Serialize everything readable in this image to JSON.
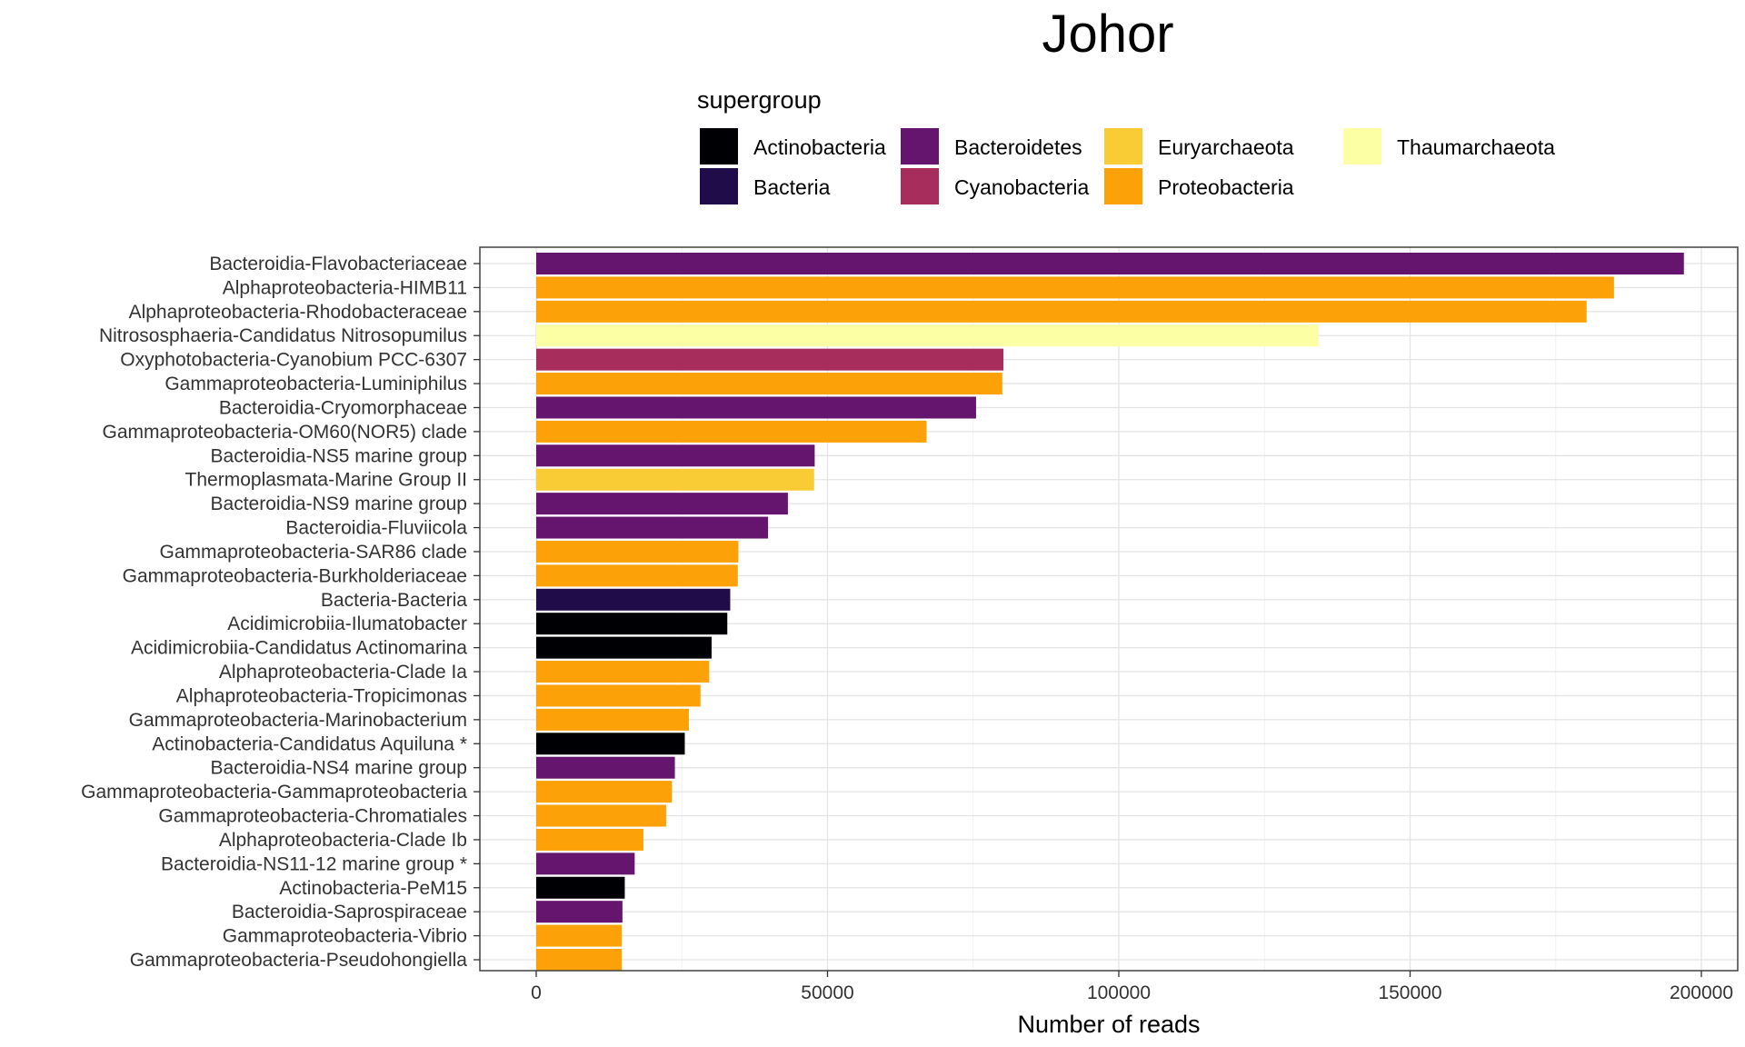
{
  "chart_data": {
    "type": "bar",
    "orientation": "horizontal",
    "title": "Johor",
    "xlabel": "Number of reads",
    "ylabel": "",
    "xlim": [
      -10000,
      207000
    ],
    "xticks": [
      0,
      50000,
      100000,
      150000,
      200000
    ],
    "grid": true,
    "legend": {
      "title": "supergroup",
      "placement": "top",
      "entries": [
        {
          "name": "Actinobacteria",
          "color": "#000004"
        },
        {
          "name": "Bacteria",
          "color": "#1f0c48"
        },
        {
          "name": "Bacteroidetes",
          "color": "#65156e"
        },
        {
          "name": "Cyanobacteria",
          "color": "#a72d5c"
        },
        {
          "name": "Euryarchaeota",
          "color": "#f9cb35"
        },
        {
          "name": "Proteobacteria",
          "color": "#fca108"
        },
        {
          "name": "Thaumarchaeota",
          "color": "#fcffa4"
        }
      ]
    },
    "bars": [
      {
        "label": "Bacteroidia-Flavobacteriaceae",
        "value": 197000,
        "group": "Bacteroidetes"
      },
      {
        "label": "Alphaproteobacteria-HIMB11",
        "value": 185000,
        "group": "Proteobacteria"
      },
      {
        "label": "Alphaproteobacteria-Rhodobacteraceae",
        "value": 180300,
        "group": "Proteobacteria"
      },
      {
        "label": "Nitrososphaeria-Candidatus Nitrosopumilus",
        "value": 134300,
        "group": "Thaumarchaeota"
      },
      {
        "label": "Oxyphotobacteria-Cyanobium PCC-6307",
        "value": 80200,
        "group": "Cyanobacteria"
      },
      {
        "label": "Gammaproteobacteria-Luminiphilus",
        "value": 80000,
        "group": "Proteobacteria"
      },
      {
        "label": "Bacteroidia-Cryomorphaceae",
        "value": 75500,
        "group": "Bacteroidetes"
      },
      {
        "label": "Gammaproteobacteria-OM60(NOR5) clade",
        "value": 67000,
        "group": "Proteobacteria"
      },
      {
        "label": "Bacteroidia-NS5 marine group",
        "value": 47800,
        "group": "Bacteroidetes"
      },
      {
        "label": "Thermoplasmata-Marine Group II",
        "value": 47700,
        "group": "Euryarchaeota"
      },
      {
        "label": "Bacteroidia-NS9 marine group",
        "value": 43200,
        "group": "Bacteroidetes"
      },
      {
        "label": "Bacteroidia-Fluviicola",
        "value": 39800,
        "group": "Bacteroidetes"
      },
      {
        "label": "Gammaproteobacteria-SAR86 clade",
        "value": 34700,
        "group": "Proteobacteria"
      },
      {
        "label": "Gammaproteobacteria-Burkholderiaceae",
        "value": 34600,
        "group": "Proteobacteria"
      },
      {
        "label": "Bacteria-Bacteria",
        "value": 33300,
        "group": "Bacteria"
      },
      {
        "label": "Acidimicrobiia-Ilumatobacter",
        "value": 32800,
        "group": "Actinobacteria"
      },
      {
        "label": "Acidimicrobiia-Candidatus Actinomarina",
        "value": 30100,
        "group": "Actinobacteria"
      },
      {
        "label": "Alphaproteobacteria-Clade Ia",
        "value": 29700,
        "group": "Proteobacteria"
      },
      {
        "label": "Alphaproteobacteria-Tropicimonas",
        "value": 28200,
        "group": "Proteobacteria"
      },
      {
        "label": "Gammaproteobacteria-Marinobacterium",
        "value": 26200,
        "group": "Proteobacteria"
      },
      {
        "label": "Actinobacteria-Candidatus Aquiluna *",
        "value": 25500,
        "group": "Actinobacteria"
      },
      {
        "label": "Bacteroidia-NS4 marine group",
        "value": 23800,
        "group": "Bacteroidetes"
      },
      {
        "label": "Gammaproteobacteria-Gammaproteobacteria",
        "value": 23300,
        "group": "Proteobacteria"
      },
      {
        "label": "Gammaproteobacteria-Chromatiales",
        "value": 22300,
        "group": "Proteobacteria"
      },
      {
        "label": "Alphaproteobacteria-Clade Ib",
        "value": 18400,
        "group": "Proteobacteria"
      },
      {
        "label": "Bacteroidia-NS11-12 marine group *",
        "value": 16900,
        "group": "Bacteroidetes"
      },
      {
        "label": "Actinobacteria-PeM15",
        "value": 15200,
        "group": "Actinobacteria"
      },
      {
        "label": "Bacteroidia-Saprospiraceae",
        "value": 14800,
        "group": "Bacteroidetes"
      },
      {
        "label": "Gammaproteobacteria-Vibrio",
        "value": 14700,
        "group": "Proteobacteria"
      },
      {
        "label": "Gammaproteobacteria-Pseudohongiella",
        "value": 14700,
        "group": "Proteobacteria"
      }
    ]
  }
}
